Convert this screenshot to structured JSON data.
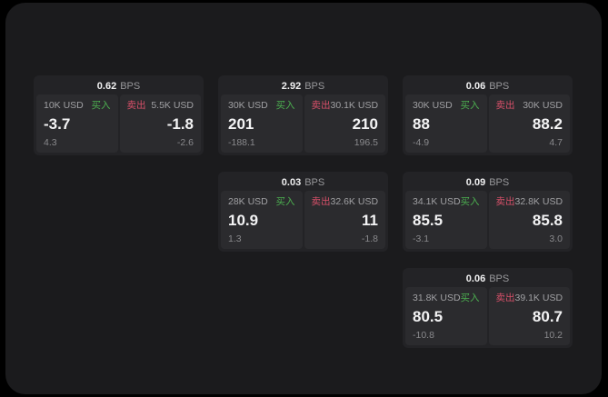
{
  "labels": {
    "bps": "BPS",
    "buy": "买入",
    "sell": "卖出"
  },
  "colors": {
    "buy_green": "#4caf50",
    "sell_red": "#d75069",
    "window_bg": "#1b1b1d",
    "card_bg": "#232326",
    "pane_bg": "#2b2b2e"
  },
  "cards": [
    {
      "bps": "0.62",
      "buy": {
        "notional": "10K USD",
        "value": "-3.7",
        "sub": "4.3"
      },
      "sell": {
        "notional": "5.5K USD",
        "value": "-1.8",
        "sub": "-2.6"
      }
    },
    {
      "bps": "2.92",
      "buy": {
        "notional": "30K USD",
        "value": "201",
        "sub": "-188.1"
      },
      "sell": {
        "notional": "30.1K USD",
        "value": "210",
        "sub": "196.5"
      }
    },
    {
      "bps": "0.06",
      "buy": {
        "notional": "30K USD",
        "value": "88",
        "sub": "-4.9"
      },
      "sell": {
        "notional": "30K USD",
        "value": "88.2",
        "sub": "4.7"
      }
    },
    {
      "bps": "0.03",
      "buy": {
        "notional": "28K USD",
        "value": "10.9",
        "sub": "1.3"
      },
      "sell": {
        "notional": "32.6K USD",
        "value": "11",
        "sub": "-1.8"
      }
    },
    {
      "bps": "0.09",
      "buy": {
        "notional": "34.1K USD",
        "value": "85.5",
        "sub": "-3.1"
      },
      "sell": {
        "notional": "32.8K USD",
        "value": "85.8",
        "sub": "3.0"
      }
    },
    {
      "bps": "0.06",
      "buy": {
        "notional": "31.8K USD",
        "value": "80.5",
        "sub": "-10.8"
      },
      "sell": {
        "notional": "39.1K USD",
        "value": "80.7",
        "sub": "10.2"
      }
    }
  ]
}
